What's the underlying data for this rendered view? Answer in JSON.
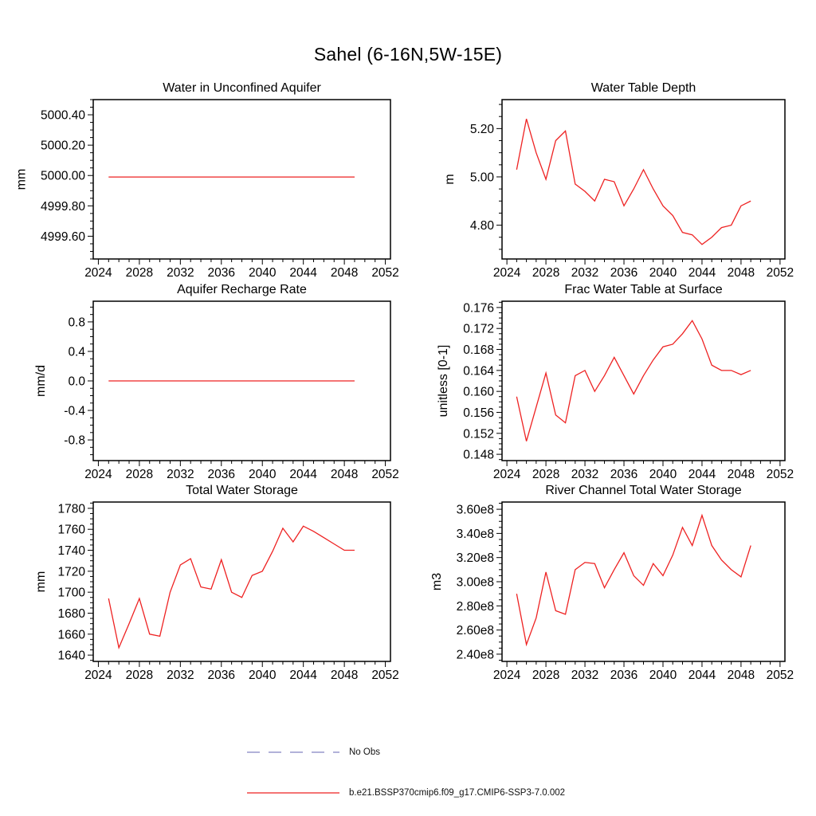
{
  "page_title": "Sahel (6-16N,5W-15E)",
  "legend": {
    "items": [
      {
        "label": "No Obs",
        "color": "#8585c2",
        "dashed": true
      },
      {
        "label": "b.e21.BSSP370cmip6.f09_g17.CMIP6-SSP3-7.0.002",
        "color": "#ee2222",
        "dashed": false
      }
    ]
  },
  "chart_data": [
    {
      "type": "line",
      "title": "Water in Unconfined Aquifer",
      "ylabel": "mm",
      "line_color": "#ee2222",
      "xlim": [
        2023.5,
        2052.5
      ],
      "ylim": [
        4999.45,
        5000.5
      ],
      "xticks": [
        2024,
        2028,
        2032,
        2036,
        2040,
        2044,
        2048,
        2052
      ],
      "yticks": [
        4999.6,
        4999.8,
        5000.0,
        5000.2,
        5000.4
      ],
      "ytick_labels": [
        "4999.60",
        "4999.80",
        "5000.00",
        "5000.20",
        "5000.40"
      ],
      "y_minor_step": 0.05,
      "x": [
        2025,
        2026,
        2027,
        2028,
        2029,
        2030,
        2031,
        2032,
        2033,
        2034,
        2035,
        2036,
        2037,
        2038,
        2039,
        2040,
        2041,
        2042,
        2043,
        2044,
        2045,
        2046,
        2047,
        2048,
        2049
      ],
      "values": [
        4999.99,
        4999.99,
        4999.99,
        4999.99,
        4999.99,
        4999.99,
        4999.99,
        4999.99,
        4999.99,
        4999.99,
        4999.99,
        4999.99,
        4999.99,
        4999.99,
        4999.99,
        4999.99,
        4999.99,
        4999.99,
        4999.99,
        4999.99,
        4999.99,
        4999.99,
        4999.99,
        4999.99,
        4999.99
      ]
    },
    {
      "type": "line",
      "title": "Water Table Depth",
      "ylabel": "m",
      "line_color": "#ee2222",
      "xlim": [
        2023.5,
        2052.5
      ],
      "ylim": [
        4.66,
        5.32
      ],
      "xticks": [
        2024,
        2028,
        2032,
        2036,
        2040,
        2044,
        2048,
        2052
      ],
      "yticks": [
        4.8,
        5.0,
        5.2
      ],
      "ytick_labels": [
        "4.80",
        "5.00",
        "5.20"
      ],
      "y_minor_step": 0.05,
      "x": [
        2025,
        2026,
        2027,
        2028,
        2029,
        2030,
        2031,
        2032,
        2033,
        2034,
        2035,
        2036,
        2037,
        2038,
        2039,
        2040,
        2041,
        2042,
        2043,
        2044,
        2045,
        2046,
        2047,
        2048,
        2049
      ],
      "values": [
        5.03,
        5.24,
        5.1,
        4.99,
        5.15,
        5.19,
        4.97,
        4.94,
        4.9,
        4.99,
        4.98,
        4.88,
        4.95,
        5.03,
        4.95,
        4.88,
        4.84,
        4.77,
        4.76,
        4.72,
        4.75,
        4.79,
        4.8,
        4.88,
        4.9
      ]
    },
    {
      "type": "line",
      "title": "Aquifer Recharge Rate",
      "ylabel": "mm/d",
      "line_color": "#ee2222",
      "xlim": [
        2023.5,
        2052.5
      ],
      "ylim": [
        -1.08,
        1.08
      ],
      "xticks": [
        2024,
        2028,
        2032,
        2036,
        2040,
        2044,
        2048,
        2052
      ],
      "yticks": [
        -0.8,
        -0.4,
        0.0,
        0.4,
        0.8
      ],
      "ytick_labels": [
        "-0.8",
        "-0.4",
        "0.0",
        "0.4",
        "0.8"
      ],
      "y_minor_step": 0.1,
      "x": [
        2025,
        2026,
        2027,
        2028,
        2029,
        2030,
        2031,
        2032,
        2033,
        2034,
        2035,
        2036,
        2037,
        2038,
        2039,
        2040,
        2041,
        2042,
        2043,
        2044,
        2045,
        2046,
        2047,
        2048,
        2049
      ],
      "values": [
        0.0,
        0.0,
        0.0,
        0.0,
        0.0,
        0.0,
        0.0,
        0.0,
        0.0,
        0.0,
        0.0,
        0.0,
        0.0,
        0.0,
        0.0,
        0.0,
        0.0,
        0.0,
        0.0,
        0.0,
        0.0,
        0.0,
        0.0,
        0.0,
        0.0
      ]
    },
    {
      "type": "line",
      "title": "Frac Water Table at Surface",
      "ylabel": "unitless [0-1]",
      "line_color": "#ee2222",
      "xlim": [
        2023.5,
        2052.5
      ],
      "ylim": [
        0.1468,
        0.1772
      ],
      "xticks": [
        2024,
        2028,
        2032,
        2036,
        2040,
        2044,
        2048,
        2052
      ],
      "yticks": [
        0.148,
        0.152,
        0.156,
        0.16,
        0.164,
        0.168,
        0.172,
        0.176
      ],
      "ytick_labels": [
        "0.148",
        "0.152",
        "0.156",
        "0.160",
        "0.164",
        "0.168",
        "0.172",
        "0.176"
      ],
      "y_minor_step": 0.001,
      "x": [
        2025,
        2026,
        2027,
        2028,
        2029,
        2030,
        2031,
        2032,
        2033,
        2034,
        2035,
        2036,
        2037,
        2038,
        2039,
        2040,
        2041,
        2042,
        2043,
        2044,
        2045,
        2046,
        2047,
        2048,
        2049
      ],
      "values": [
        0.159,
        0.1505,
        0.157,
        0.1635,
        0.1555,
        0.154,
        0.163,
        0.164,
        0.16,
        0.163,
        0.1665,
        0.163,
        0.1595,
        0.163,
        0.166,
        0.1685,
        0.169,
        0.171,
        0.1735,
        0.17,
        0.165,
        0.164,
        0.164,
        0.1632,
        0.164
      ]
    },
    {
      "type": "line",
      "title": "Total Water Storage",
      "ylabel": "mm",
      "line_color": "#ee2222",
      "xlim": [
        2023.5,
        2052.5
      ],
      "ylim": [
        1634,
        1786
      ],
      "xticks": [
        2024,
        2028,
        2032,
        2036,
        2040,
        2044,
        2048,
        2052
      ],
      "yticks": [
        1640,
        1660,
        1680,
        1700,
        1720,
        1740,
        1760,
        1780
      ],
      "ytick_labels": [
        "1640",
        "1660",
        "1680",
        "1700",
        "1720",
        "1740",
        "1760",
        "1780"
      ],
      "y_minor_step": 5,
      "x": [
        2025,
        2026,
        2027,
        2028,
        2029,
        2030,
        2031,
        2032,
        2033,
        2034,
        2035,
        2036,
        2037,
        2038,
        2039,
        2040,
        2041,
        2042,
        2043,
        2044,
        2045,
        2046,
        2047,
        2048,
        2049
      ],
      "values": [
        1694,
        1647,
        1670,
        1694,
        1660,
        1658,
        1700,
        1726,
        1732,
        1705,
        1703,
        1731,
        1700,
        1695,
        1716,
        1720,
        1739,
        1761,
        1748,
        1763,
        1758,
        1752,
        1746,
        1740,
        1740
      ]
    },
    {
      "type": "line",
      "title": "River Channel Total Water Storage",
      "ylabel": "m3",
      "line_color": "#ee2222",
      "xlim": [
        2023.5,
        2052.5
      ],
      "ylim": [
        234000000.0,
        366000000.0
      ],
      "xticks": [
        2024,
        2028,
        2032,
        2036,
        2040,
        2044,
        2048,
        2052
      ],
      "yticks": [
        240000000.0,
        260000000.0,
        280000000.0,
        300000000.0,
        320000000.0,
        340000000.0,
        360000000.0
      ],
      "ytick_labels": [
        "2.40e8",
        "2.60e8",
        "2.80e8",
        "3.00e8",
        "3.20e8",
        "3.40e8",
        "3.60e8"
      ],
      "y_minor_step": 5000000.0,
      "x": [
        2025,
        2026,
        2027,
        2028,
        2029,
        2030,
        2031,
        2032,
        2033,
        2034,
        2035,
        2036,
        2037,
        2038,
        2039,
        2040,
        2041,
        2042,
        2043,
        2044,
        2045,
        2046,
        2047,
        2048,
        2049
      ],
      "values": [
        290000000.0,
        248000000.0,
        270000000.0,
        308000000.0,
        276000000.0,
        273000000.0,
        310000000.0,
        316000000.0,
        315000000.0,
        295000000.0,
        310000000.0,
        324000000.0,
        305000000.0,
        297000000.0,
        315000000.0,
        305000000.0,
        322000000.0,
        345000000.0,
        330000000.0,
        355000000.0,
        330000000.0,
        318000000.0,
        310000000.0,
        304000000.0,
        330000000.0
      ]
    }
  ]
}
